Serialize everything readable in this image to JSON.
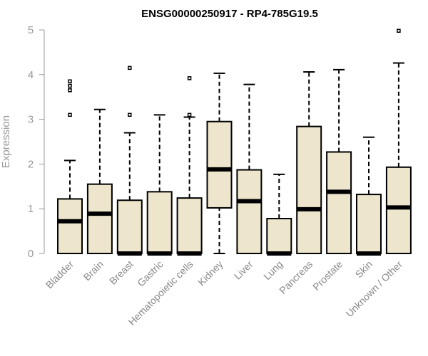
{
  "chart_data": {
    "type": "box",
    "title": "ENSG00000250917 - RP4-785G19.5",
    "xlabel": "",
    "ylabel": "Expression",
    "ylim": [
      0,
      5
    ],
    "yticks": [
      0,
      1,
      2,
      3,
      4,
      5
    ],
    "grid": false,
    "legend": "none",
    "box_fill": "#ede6cc",
    "categories": [
      "Bladder",
      "Brain",
      "Breast",
      "Gastric",
      "Hematopoietic cells",
      "Kidney",
      "Liver",
      "Lung",
      "Pancreas",
      "Prostate",
      "Skin",
      "Unknown / Other"
    ],
    "boxes": [
      {
        "category": "Bladder",
        "whisker_low": 0,
        "q1": 0,
        "median": 0.72,
        "q3": 1.22,
        "whisker_high": 2.08,
        "outliers": [
          3.1,
          3.65,
          3.75,
          3.85
        ]
      },
      {
        "category": "Brain",
        "whisker_low": 0,
        "q1": 0,
        "median": 0.89,
        "q3": 1.55,
        "whisker_high": 3.22,
        "outliers": []
      },
      {
        "category": "Breast",
        "whisker_low": 0,
        "q1": 0,
        "median": 0.0,
        "q3": 1.19,
        "whisker_high": 2.7,
        "outliers": [
          3.1,
          4.15
        ]
      },
      {
        "category": "Gastric",
        "whisker_low": 0,
        "q1": 0,
        "median": 0.0,
        "q3": 1.38,
        "whisker_high": 3.1,
        "outliers": []
      },
      {
        "category": "Hematopoietic cells",
        "whisker_low": 0,
        "q1": 0,
        "median": 0.0,
        "q3": 1.24,
        "whisker_high": 3.05,
        "outliers": [
          3.1,
          3.92
        ]
      },
      {
        "category": "Kidney",
        "whisker_low": 0,
        "q1": 1.02,
        "median": 1.88,
        "q3": 2.95,
        "whisker_high": 4.03,
        "outliers": []
      },
      {
        "category": "Liver",
        "whisker_low": 0,
        "q1": 0,
        "median": 1.17,
        "q3": 1.87,
        "whisker_high": 3.78,
        "outliers": []
      },
      {
        "category": "Lung",
        "whisker_low": 0,
        "q1": 0,
        "median": 0.0,
        "q3": 0.78,
        "whisker_high": 1.77,
        "outliers": []
      },
      {
        "category": "Pancreas",
        "whisker_low": 0,
        "q1": 0,
        "median": 0.99,
        "q3": 2.84,
        "whisker_high": 4.06,
        "outliers": []
      },
      {
        "category": "Prostate",
        "whisker_low": 0,
        "q1": 0,
        "median": 1.38,
        "q3": 2.27,
        "whisker_high": 4.11,
        "outliers": []
      },
      {
        "category": "Skin",
        "whisker_low": 0,
        "q1": 0,
        "median": 0.0,
        "q3": 1.32,
        "whisker_high": 2.6,
        "outliers": []
      },
      {
        "category": "Unknown / Other",
        "whisker_low": 0,
        "q1": 0,
        "median": 1.03,
        "q3": 1.93,
        "whisker_high": 4.26,
        "outliers": [
          4.98
        ]
      }
    ]
  }
}
